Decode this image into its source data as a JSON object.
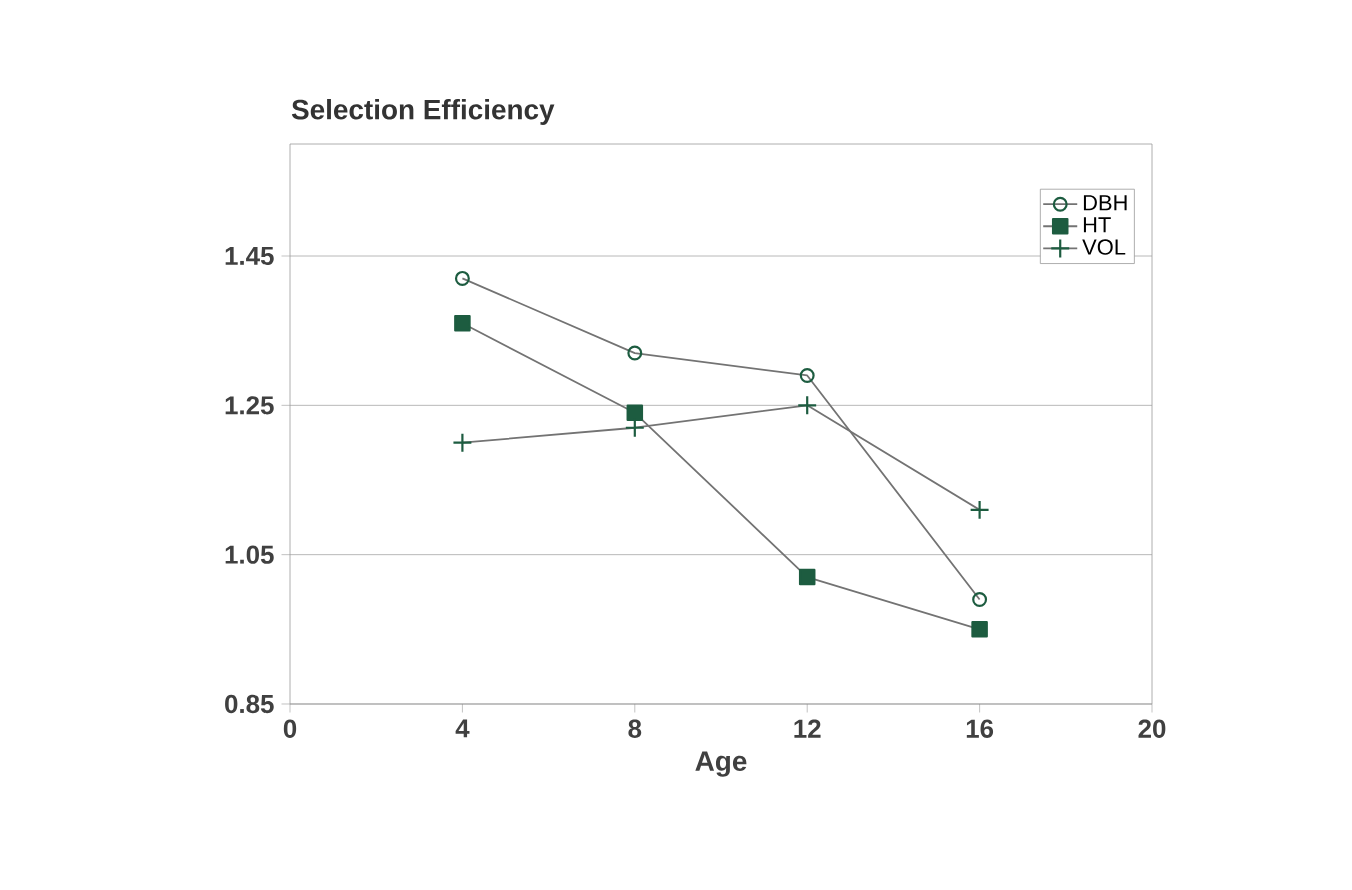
{
  "chart_data": {
    "type": "line",
    "title": "Selection Efficiency",
    "xlabel": "Age",
    "x": [
      4,
      8,
      12,
      16
    ],
    "xlim": [
      0,
      20
    ],
    "xticks": [
      0,
      4,
      8,
      12,
      16,
      20
    ],
    "ylim": [
      0.85,
      1.6
    ],
    "yticks": [
      0.85,
      1.05,
      1.25,
      1.45
    ],
    "grid": "y",
    "legend": "top right",
    "series": [
      {
        "name": "DBH",
        "color": "#1d5c40",
        "marker": "circle",
        "values": [
          1.42,
          1.32,
          1.29,
          0.99
        ]
      },
      {
        "name": "HT",
        "color": "#1d5c40",
        "marker": "square",
        "values": [
          1.36,
          1.24,
          1.02,
          0.95
        ]
      },
      {
        "name": "VOL",
        "color": "#1d5c40",
        "marker": "cross",
        "values": [
          1.2,
          1.22,
          1.25,
          1.11
        ]
      }
    ]
  }
}
